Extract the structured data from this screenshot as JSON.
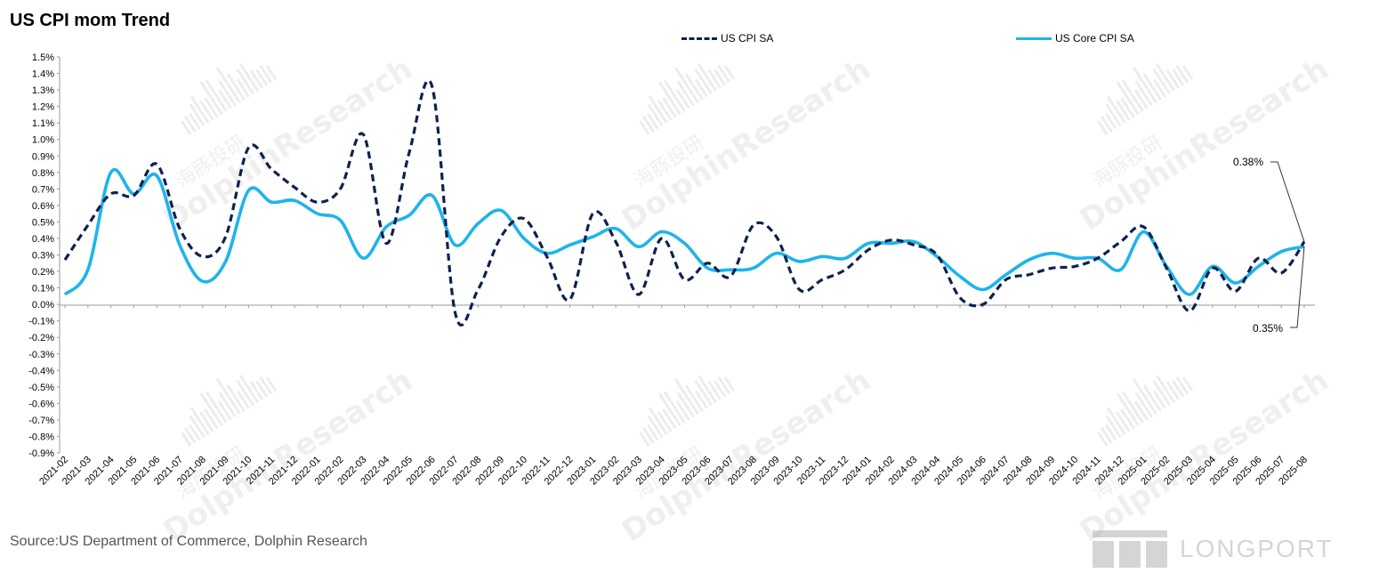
{
  "title": "US CPI mom Trend",
  "source": "Source:US Department of Commerce, Dolphin Research",
  "watermark": {
    "cn": "海豚投研",
    "en": "DolphinResearch",
    "brand": "LONGPORT"
  },
  "callouts": {
    "cpi_last": "0.38%",
    "core_last": "0.35%"
  },
  "colors": {
    "cpi": "#0d2150",
    "core": "#1eb4ea",
    "axis": "#999999"
  },
  "chart_data": {
    "type": "line",
    "title": "US CPI mom Trend",
    "xlabel": "",
    "ylabel": "",
    "ylim": [
      -0.9,
      1.5
    ],
    "ytick_step": 0.1,
    "y_unit": "%",
    "grid": false,
    "legend_position": "top",
    "categories": [
      "2021-02",
      "2021-03",
      "2021-04",
      "2021-05",
      "2021-06",
      "2021-07",
      "2021-08",
      "2021-09",
      "2021-10",
      "2021-11",
      "2021-12",
      "2022-01",
      "2022-02",
      "2022-03",
      "2022-04",
      "2022-05",
      "2022-06",
      "2022-07",
      "2022-08",
      "2022-09",
      "2022-10",
      "2022-11",
      "2022-12",
      "2023-01",
      "2023-02",
      "2023-03",
      "2023-04",
      "2023-05",
      "2023-06",
      "2023-07",
      "2023-08",
      "2023-09",
      "2023-10",
      "2023-11",
      "2023-12",
      "2024-01",
      "2024-02",
      "2024-03",
      "2024-04",
      "2024-05",
      "2024-06",
      "2024-07",
      "2024-08",
      "2024-09",
      "2024-10",
      "2024-11",
      "2024-12",
      "2025-01",
      "2025-02",
      "2025-03",
      "2025-04",
      "2025-05",
      "2025-06",
      "2025-07",
      "2025-08"
    ],
    "series": [
      {
        "name": "US CPI SA",
        "style": "dashed",
        "values": [
          0.27,
          0.48,
          0.67,
          0.66,
          0.85,
          0.46,
          0.29,
          0.41,
          0.95,
          0.82,
          0.71,
          0.62,
          0.7,
          1.03,
          0.37,
          0.92,
          1.32,
          -0.05,
          0.09,
          0.41,
          0.52,
          0.29,
          0.03,
          0.55,
          0.38,
          0.06,
          0.4,
          0.15,
          0.25,
          0.17,
          0.48,
          0.41,
          0.09,
          0.15,
          0.21,
          0.33,
          0.39,
          0.36,
          0.3,
          0.04,
          0.0,
          0.15,
          0.18,
          0.22,
          0.23,
          0.28,
          0.38,
          0.47,
          0.22,
          -0.04,
          0.22,
          0.08,
          0.28,
          0.19,
          0.38
        ]
      },
      {
        "name": "US Core CPI SA",
        "style": "solid",
        "values": [
          0.06,
          0.21,
          0.8,
          0.67,
          0.78,
          0.36,
          0.14,
          0.26,
          0.69,
          0.62,
          0.63,
          0.55,
          0.51,
          0.28,
          0.47,
          0.54,
          0.66,
          0.36,
          0.49,
          0.57,
          0.4,
          0.31,
          0.36,
          0.41,
          0.46,
          0.35,
          0.44,
          0.37,
          0.22,
          0.21,
          0.22,
          0.31,
          0.26,
          0.29,
          0.28,
          0.37,
          0.37,
          0.38,
          0.29,
          0.17,
          0.09,
          0.18,
          0.27,
          0.31,
          0.28,
          0.28,
          0.21,
          0.44,
          0.23,
          0.06,
          0.23,
          0.13,
          0.23,
          0.32,
          0.35
        ]
      }
    ]
  }
}
